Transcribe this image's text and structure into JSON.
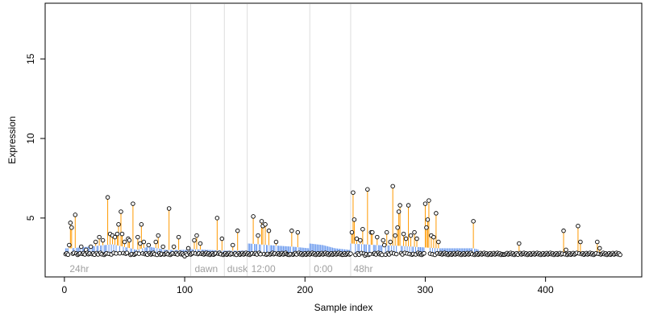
{
  "chart_data": {
    "type": "scatter",
    "title": "",
    "xlabel": "Sample index",
    "ylabel": "Expression",
    "xlim": [
      -16,
      480
    ],
    "ylim": [
      1.3,
      18.5
    ],
    "x_ticks": [
      0,
      100,
      200,
      300,
      400
    ],
    "y_ticks": [
      5,
      10,
      15
    ],
    "grid": false,
    "colors": {
      "points_fill": "#ffffff",
      "points_stroke": "#000000",
      "orange_segments": "#ff9900",
      "blue_segments": "#6495ed",
      "dividers": "#dddddd",
      "condition_labels": "#a0a0a0"
    },
    "baseline": 2.75,
    "condition_boundaries": [
      105,
      133,
      152,
      204,
      238
    ],
    "condition_labels": [
      {
        "text": "24hr",
        "x": 3
      },
      {
        "text": "dawn",
        "x": 107
      },
      {
        "text": "dusk",
        "x": 134
      },
      {
        "text": "12:00",
        "x": 154
      },
      {
        "text": "0:00",
        "x": 206
      },
      {
        "text": "48hr",
        "x": 239
      }
    ],
    "blue_trend": [
      [
        6,
        3.1
      ],
      [
        20,
        3.2
      ],
      [
        40,
        3.35
      ],
      [
        55,
        3.1
      ],
      [
        60,
        3.0
      ],
      [
        70,
        3.2
      ],
      [
        85,
        3.0
      ],
      [
        100,
        3.0
      ],
      [
        105,
        3.05
      ],
      [
        133,
        2.95
      ],
      [
        152,
        2.95
      ],
      [
        153,
        3.4
      ],
      [
        170,
        3.3
      ],
      [
        190,
        3.2
      ],
      [
        203,
        3.1
      ],
      [
        204,
        3.4
      ],
      [
        215,
        3.3
      ],
      [
        225,
        3.1
      ],
      [
        237,
        3.0
      ],
      [
        238,
        3.4
      ],
      [
        260,
        3.3
      ],
      [
        280,
        3.25
      ],
      [
        300,
        3.15
      ],
      [
        310,
        3.1
      ],
      [
        340,
        3.1
      ],
      [
        345,
        3.0
      ],
      [
        380,
        2.9
      ],
      [
        460,
        2.8
      ]
    ],
    "peaks": [
      [
        4,
        3.3
      ],
      [
        5,
        4.7
      ],
      [
        6,
        4.4
      ],
      [
        9,
        5.2
      ],
      [
        14,
        3.2
      ],
      [
        18,
        3.0
      ],
      [
        22,
        3.2
      ],
      [
        26,
        3.5
      ],
      [
        29,
        3.8
      ],
      [
        32,
        3.6
      ],
      [
        36,
        6.3
      ],
      [
        38,
        4.0
      ],
      [
        40,
        3.9
      ],
      [
        42,
        3.8
      ],
      [
        44,
        4.0
      ],
      [
        45,
        4.6
      ],
      [
        47,
        5.4
      ],
      [
        48,
        4.0
      ],
      [
        50,
        3.5
      ],
      [
        53,
        3.7
      ],
      [
        54,
        3.6
      ],
      [
        57,
        5.9
      ],
      [
        61,
        3.8
      ],
      [
        63,
        3.4
      ],
      [
        64,
        4.6
      ],
      [
        66,
        3.5
      ],
      [
        70,
        3.3
      ],
      [
        76,
        3.5
      ],
      [
        78,
        3.9
      ],
      [
        82,
        3.2
      ],
      [
        87,
        5.6
      ],
      [
        91,
        3.2
      ],
      [
        95,
        3.8
      ],
      [
        103,
        3.1
      ],
      [
        108,
        3.6
      ],
      [
        110,
        3.9
      ],
      [
        113,
        3.4
      ],
      [
        127,
        5.0
      ],
      [
        131,
        3.7
      ],
      [
        140,
        3.3
      ],
      [
        144,
        4.2
      ],
      [
        157,
        5.1
      ],
      [
        161,
        3.9
      ],
      [
        164,
        4.8
      ],
      [
        165,
        4.5
      ],
      [
        167,
        4.6
      ],
      [
        170,
        4.2
      ],
      [
        176,
        3.5
      ],
      [
        189,
        4.2
      ],
      [
        194,
        4.1
      ],
      [
        239,
        4.1
      ],
      [
        240,
        6.6
      ],
      [
        241,
        4.9
      ],
      [
        243,
        3.7
      ],
      [
        246,
        3.6
      ],
      [
        248,
        4.3
      ],
      [
        252,
        6.8
      ],
      [
        255,
        4.1
      ],
      [
        256,
        4.1
      ],
      [
        260,
        3.8
      ],
      [
        265,
        3.6
      ],
      [
        266,
        3.3
      ],
      [
        268,
        4.1
      ],
      [
        271,
        3.5
      ],
      [
        273,
        7.0
      ],
      [
        275,
        3.9
      ],
      [
        277,
        4.4
      ],
      [
        278,
        5.4
      ],
      [
        279,
        5.8
      ],
      [
        282,
        4.0
      ],
      [
        284,
        3.7
      ],
      [
        286,
        5.8
      ],
      [
        288,
        3.9
      ],
      [
        291,
        4.1
      ],
      [
        293,
        3.7
      ],
      [
        300,
        5.9
      ],
      [
        301,
        4.4
      ],
      [
        302,
        4.9
      ],
      [
        303,
        6.1
      ],
      [
        305,
        3.9
      ],
      [
        307,
        3.8
      ],
      [
        309,
        5.3
      ],
      [
        311,
        3.5
      ],
      [
        340,
        4.8
      ],
      [
        378,
        3.4
      ],
      [
        415,
        4.2
      ],
      [
        417,
        3.0
      ],
      [
        427,
        4.5
      ],
      [
        429,
        3.5
      ],
      [
        443,
        3.5
      ],
      [
        445,
        3.1
      ]
    ],
    "dips": [
      [
        100,
        2.6
      ],
      [
        186,
        2.7
      ],
      [
        232,
        2.7
      ],
      [
        250,
        2.65
      ],
      [
        365,
        2.7
      ]
    ]
  }
}
